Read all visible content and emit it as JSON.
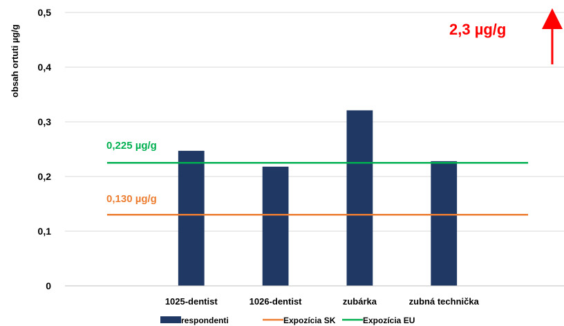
{
  "chart_data": {
    "type": "bar",
    "title": "",
    "xlabel": "",
    "ylabel": "obsah ortuti µg/g",
    "ylim": [
      0,
      0.5
    ],
    "yticks": [
      "0",
      "0,1",
      "0,2",
      "0,3",
      "0,4",
      "0,5"
    ],
    "categories": [
      "",
      "1025-dentist",
      "1026-dentist",
      "zubárka",
      "zubná technička",
      ""
    ],
    "series": [
      {
        "name": "respondenti",
        "type": "bar",
        "values": [
          null,
          0.247,
          0.218,
          0.321,
          0.228,
          null
        ],
        "color": "#1f3864"
      },
      {
        "name": "Expozícia SK",
        "type": "line",
        "values": [
          0.13,
          0.13,
          0.13,
          0.13,
          0.13,
          0.13
        ],
        "color": "#ed7d31"
      },
      {
        "name": "Expozícia EU",
        "type": "line",
        "values": [
          0.225,
          0.225,
          0.225,
          0.225,
          0.225,
          0.225
        ],
        "color": "#00b050"
      }
    ],
    "annotations": [
      {
        "text": "0,225 µg/g",
        "color": "#00b050"
      },
      {
        "text": "0,130 µg/g",
        "color": "#ed7d31"
      },
      {
        "text": "2,3 µg/g",
        "color": "#ff0000"
      }
    ],
    "grid": "horizontal",
    "legend_position": "bottom"
  }
}
